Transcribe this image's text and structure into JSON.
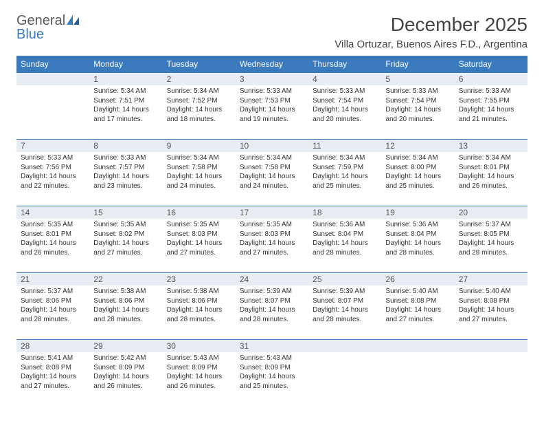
{
  "logo": {
    "general": "General",
    "blue": "Blue"
  },
  "title": "December 2025",
  "location": "Villa Ortuzar, Buenos Aires F.D., Argentina",
  "dayNames": [
    "Sunday",
    "Monday",
    "Tuesday",
    "Wednesday",
    "Thursday",
    "Friday",
    "Saturday"
  ],
  "colors": {
    "headerBg": "#3a7abd",
    "dayNumBg": "#e7edf3",
    "dayNumBorder": "#3a7abd",
    "text": "#333333"
  },
  "weeks": [
    {
      "nums": [
        "",
        "1",
        "2",
        "3",
        "4",
        "5",
        "6"
      ],
      "cells": [
        {
          "sr": "",
          "ss": "",
          "dl1": "",
          "dl2": ""
        },
        {
          "sr": "Sunrise: 5:34 AM",
          "ss": "Sunset: 7:51 PM",
          "dl1": "Daylight: 14 hours",
          "dl2": "and 17 minutes."
        },
        {
          "sr": "Sunrise: 5:34 AM",
          "ss": "Sunset: 7:52 PM",
          "dl1": "Daylight: 14 hours",
          "dl2": "and 18 minutes."
        },
        {
          "sr": "Sunrise: 5:33 AM",
          "ss": "Sunset: 7:53 PM",
          "dl1": "Daylight: 14 hours",
          "dl2": "and 19 minutes."
        },
        {
          "sr": "Sunrise: 5:33 AM",
          "ss": "Sunset: 7:54 PM",
          "dl1": "Daylight: 14 hours",
          "dl2": "and 20 minutes."
        },
        {
          "sr": "Sunrise: 5:33 AM",
          "ss": "Sunset: 7:54 PM",
          "dl1": "Daylight: 14 hours",
          "dl2": "and 20 minutes."
        },
        {
          "sr": "Sunrise: 5:33 AM",
          "ss": "Sunset: 7:55 PM",
          "dl1": "Daylight: 14 hours",
          "dl2": "and 21 minutes."
        }
      ]
    },
    {
      "nums": [
        "7",
        "8",
        "9",
        "10",
        "11",
        "12",
        "13"
      ],
      "cells": [
        {
          "sr": "Sunrise: 5:33 AM",
          "ss": "Sunset: 7:56 PM",
          "dl1": "Daylight: 14 hours",
          "dl2": "and 22 minutes."
        },
        {
          "sr": "Sunrise: 5:33 AM",
          "ss": "Sunset: 7:57 PM",
          "dl1": "Daylight: 14 hours",
          "dl2": "and 23 minutes."
        },
        {
          "sr": "Sunrise: 5:34 AM",
          "ss": "Sunset: 7:58 PM",
          "dl1": "Daylight: 14 hours",
          "dl2": "and 24 minutes."
        },
        {
          "sr": "Sunrise: 5:34 AM",
          "ss": "Sunset: 7:58 PM",
          "dl1": "Daylight: 14 hours",
          "dl2": "and 24 minutes."
        },
        {
          "sr": "Sunrise: 5:34 AM",
          "ss": "Sunset: 7:59 PM",
          "dl1": "Daylight: 14 hours",
          "dl2": "and 25 minutes."
        },
        {
          "sr": "Sunrise: 5:34 AM",
          "ss": "Sunset: 8:00 PM",
          "dl1": "Daylight: 14 hours",
          "dl2": "and 25 minutes."
        },
        {
          "sr": "Sunrise: 5:34 AM",
          "ss": "Sunset: 8:01 PM",
          "dl1": "Daylight: 14 hours",
          "dl2": "and 26 minutes."
        }
      ]
    },
    {
      "nums": [
        "14",
        "15",
        "16",
        "17",
        "18",
        "19",
        "20"
      ],
      "cells": [
        {
          "sr": "Sunrise: 5:35 AM",
          "ss": "Sunset: 8:01 PM",
          "dl1": "Daylight: 14 hours",
          "dl2": "and 26 minutes."
        },
        {
          "sr": "Sunrise: 5:35 AM",
          "ss": "Sunset: 8:02 PM",
          "dl1": "Daylight: 14 hours",
          "dl2": "and 27 minutes."
        },
        {
          "sr": "Sunrise: 5:35 AM",
          "ss": "Sunset: 8:03 PM",
          "dl1": "Daylight: 14 hours",
          "dl2": "and 27 minutes."
        },
        {
          "sr": "Sunrise: 5:35 AM",
          "ss": "Sunset: 8:03 PM",
          "dl1": "Daylight: 14 hours",
          "dl2": "and 27 minutes."
        },
        {
          "sr": "Sunrise: 5:36 AM",
          "ss": "Sunset: 8:04 PM",
          "dl1": "Daylight: 14 hours",
          "dl2": "and 28 minutes."
        },
        {
          "sr": "Sunrise: 5:36 AM",
          "ss": "Sunset: 8:04 PM",
          "dl1": "Daylight: 14 hours",
          "dl2": "and 28 minutes."
        },
        {
          "sr": "Sunrise: 5:37 AM",
          "ss": "Sunset: 8:05 PM",
          "dl1": "Daylight: 14 hours",
          "dl2": "and 28 minutes."
        }
      ]
    },
    {
      "nums": [
        "21",
        "22",
        "23",
        "24",
        "25",
        "26",
        "27"
      ],
      "cells": [
        {
          "sr": "Sunrise: 5:37 AM",
          "ss": "Sunset: 8:06 PM",
          "dl1": "Daylight: 14 hours",
          "dl2": "and 28 minutes."
        },
        {
          "sr": "Sunrise: 5:38 AM",
          "ss": "Sunset: 8:06 PM",
          "dl1": "Daylight: 14 hours",
          "dl2": "and 28 minutes."
        },
        {
          "sr": "Sunrise: 5:38 AM",
          "ss": "Sunset: 8:06 PM",
          "dl1": "Daylight: 14 hours",
          "dl2": "and 28 minutes."
        },
        {
          "sr": "Sunrise: 5:39 AM",
          "ss": "Sunset: 8:07 PM",
          "dl1": "Daylight: 14 hours",
          "dl2": "and 28 minutes."
        },
        {
          "sr": "Sunrise: 5:39 AM",
          "ss": "Sunset: 8:07 PM",
          "dl1": "Daylight: 14 hours",
          "dl2": "and 28 minutes."
        },
        {
          "sr": "Sunrise: 5:40 AM",
          "ss": "Sunset: 8:08 PM",
          "dl1": "Daylight: 14 hours",
          "dl2": "and 27 minutes."
        },
        {
          "sr": "Sunrise: 5:40 AM",
          "ss": "Sunset: 8:08 PM",
          "dl1": "Daylight: 14 hours",
          "dl2": "and 27 minutes."
        }
      ]
    },
    {
      "nums": [
        "28",
        "29",
        "30",
        "31",
        "",
        "",
        ""
      ],
      "cells": [
        {
          "sr": "Sunrise: 5:41 AM",
          "ss": "Sunset: 8:08 PM",
          "dl1": "Daylight: 14 hours",
          "dl2": "and 27 minutes."
        },
        {
          "sr": "Sunrise: 5:42 AM",
          "ss": "Sunset: 8:09 PM",
          "dl1": "Daylight: 14 hours",
          "dl2": "and 26 minutes."
        },
        {
          "sr": "Sunrise: 5:43 AM",
          "ss": "Sunset: 8:09 PM",
          "dl1": "Daylight: 14 hours",
          "dl2": "and 26 minutes."
        },
        {
          "sr": "Sunrise: 5:43 AM",
          "ss": "Sunset: 8:09 PM",
          "dl1": "Daylight: 14 hours",
          "dl2": "and 25 minutes."
        },
        {
          "sr": "",
          "ss": "",
          "dl1": "",
          "dl2": ""
        },
        {
          "sr": "",
          "ss": "",
          "dl1": "",
          "dl2": ""
        },
        {
          "sr": "",
          "ss": "",
          "dl1": "",
          "dl2": ""
        }
      ]
    }
  ]
}
